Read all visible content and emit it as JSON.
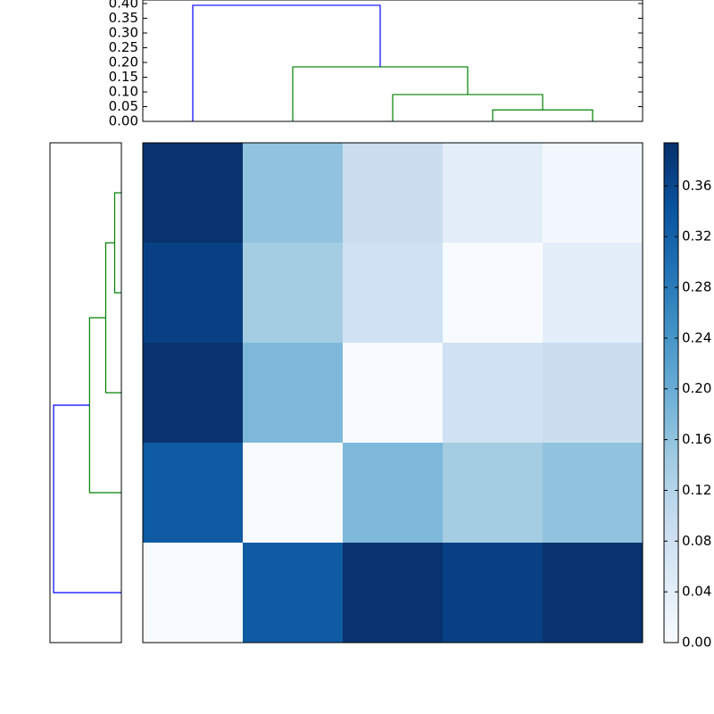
{
  "chart_data": [
    {
      "type": "dendrogram",
      "orientation": "top",
      "xlim": [
        0,
        50
      ],
      "ylim": [
        0,
        0.412
      ],
      "yticks": [
        {
          "value": 0,
          "label": "0.00"
        },
        {
          "value": 0.05,
          "label": "0.05"
        },
        {
          "value": 0.1,
          "label": "0.10"
        },
        {
          "value": 0.15,
          "label": "0.15"
        },
        {
          "value": 0.2,
          "label": "0.20"
        },
        {
          "value": 0.25,
          "label": "0.25"
        },
        {
          "value": 0.3,
          "label": "0.30"
        },
        {
          "value": 0.35,
          "label": "0.35"
        },
        {
          "value": 0.4,
          "label": "0.40"
        }
      ],
      "links": [
        {
          "leaf_pos": [
            35,
            35,
            45,
            45
          ],
          "height": [
            0,
            0.039,
            0.039,
            0
          ],
          "color": "#008000"
        },
        {
          "leaf_pos": [
            25,
            25,
            40,
            40
          ],
          "height": [
            0,
            0.091,
            0.091,
            0.039
          ],
          "color": "#008000"
        },
        {
          "leaf_pos": [
            15,
            15,
            32.5,
            32.5
          ],
          "height": [
            0,
            0.185,
            0.185,
            0.091
          ],
          "color": "#008000"
        },
        {
          "leaf_pos": [
            5,
            5,
            23.75,
            23.75
          ],
          "height": [
            0,
            0.394,
            0.394,
            0.185
          ],
          "color": "#0000ff"
        }
      ]
    },
    {
      "type": "dendrogram",
      "orientation": "left",
      "ylim": [
        0,
        50
      ],
      "xlim": [
        0.415,
        0
      ],
      "links": [
        {
          "leaf_pos": [
            35,
            35,
            45,
            45
          ],
          "height": [
            0,
            0.039,
            0.039,
            0
          ],
          "color": "#008000"
        },
        {
          "leaf_pos": [
            25,
            25,
            40,
            40
          ],
          "height": [
            0,
            0.091,
            0.091,
            0.039
          ],
          "color": "#008000"
        },
        {
          "leaf_pos": [
            15,
            15,
            32.5,
            32.5
          ],
          "height": [
            0,
            0.185,
            0.185,
            0.091
          ],
          "color": "#008000"
        },
        {
          "leaf_pos": [
            5,
            5,
            23.75,
            23.75
          ],
          "height": [
            0,
            0.394,
            0.394,
            0.185
          ],
          "color": "#0000ff"
        }
      ]
    },
    {
      "type": "heatmap",
      "values": [
        [
          0.39,
          0.16,
          0.09,
          0.04,
          0.01
        ],
        [
          0.37,
          0.14,
          0.08,
          0.0,
          0.04
        ],
        [
          0.39,
          0.18,
          0.0,
          0.08,
          0.09
        ],
        [
          0.33,
          0.0,
          0.18,
          0.14,
          0.16
        ],
        [
          0.0,
          0.33,
          0.39,
          0.37,
          0.39
        ]
      ],
      "colormap": [
        "#f7fbff",
        "#deebf7",
        "#c6dbef",
        "#9ecae1",
        "#6baed6",
        "#4292c6",
        "#2171b5",
        "#08519c",
        "#08306b"
      ],
      "clim": [
        0,
        0.394
      ],
      "colorbar_ticks": [
        {
          "value": 0,
          "label": "0.00"
        },
        {
          "value": 0.04,
          "label": "0.04"
        },
        {
          "value": 0.08,
          "label": "0.08"
        },
        {
          "value": 0.12,
          "label": "0.12"
        },
        {
          "value": 0.16,
          "label": "0.16"
        },
        {
          "value": 0.2,
          "label": "0.20"
        },
        {
          "value": 0.24,
          "label": "0.24"
        },
        {
          "value": 0.28,
          "label": "0.28"
        },
        {
          "value": 0.32,
          "label": "0.32"
        },
        {
          "value": 0.36,
          "label": "0.36"
        }
      ]
    }
  ]
}
